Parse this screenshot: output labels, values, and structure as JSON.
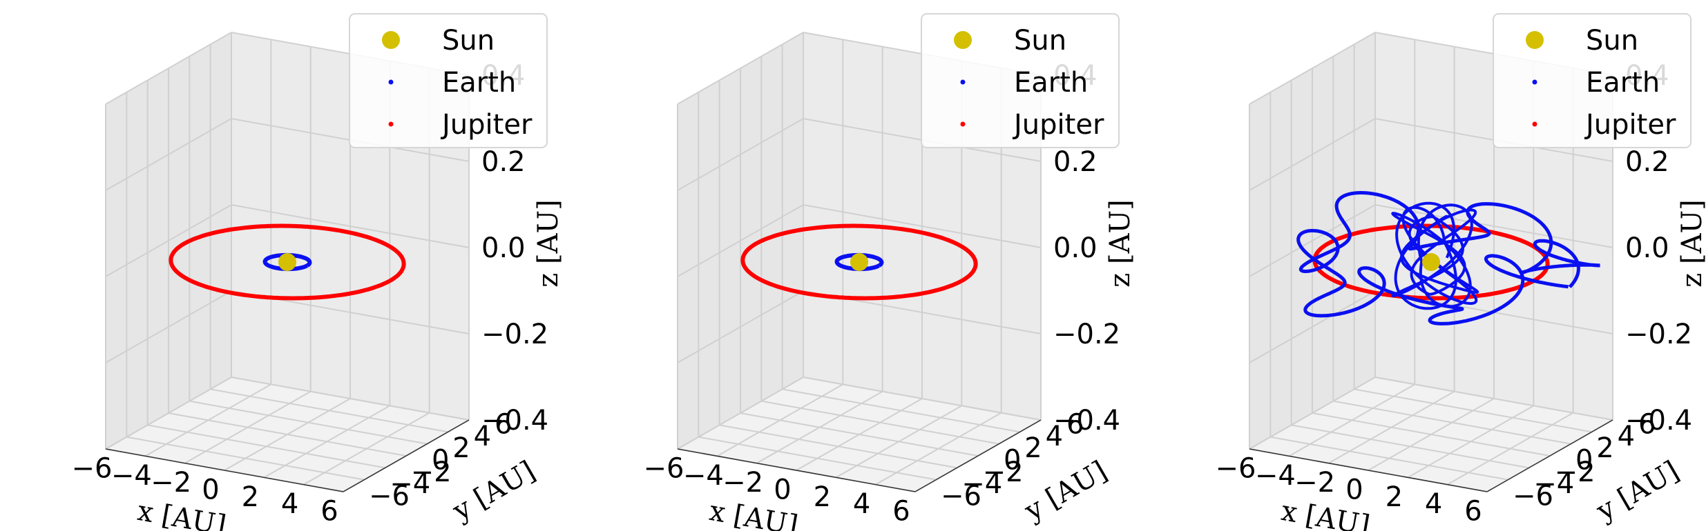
{
  "colors": {
    "sun": "#d4c000",
    "earth": "#0a10f0",
    "jupiter": "#ff0000",
    "pane": "#f2f2f2",
    "grid": "#d0d0d0"
  },
  "legend": {
    "labels": [
      "Sun",
      "Earth",
      "Jupiter"
    ],
    "placement": "top-right"
  },
  "axis_labels": {
    "x": "x [AU]",
    "y": "y [AU]",
    "z": "z [AU]"
  },
  "chart_data": [
    {
      "type": "line",
      "view": "3d",
      "xlim": [
        -6,
        6
      ],
      "ylim": [
        -6,
        6
      ],
      "zlim": [
        -0.4,
        0.4
      ],
      "x_ticks": [
        "−6",
        "−4",
        "−2",
        "0",
        "2",
        "4",
        "6"
      ],
      "y_ticks": [
        "−6",
        "−4",
        "−2",
        "0",
        "2",
        "4",
        "6"
      ],
      "z_ticks": [
        "−0.4",
        "−0.2",
        "0.0",
        "0.2",
        "0.4"
      ],
      "series": [
        {
          "name": "Sun",
          "marker": "dot",
          "x": [
            0
          ],
          "y": [
            0
          ],
          "z": [
            0
          ]
        },
        {
          "name": "Earth",
          "orbit": "circle",
          "radius_au": 1.0,
          "center": [
            0,
            0,
            0
          ]
        },
        {
          "name": "Jupiter",
          "orbit": "circle",
          "radius_au": 5.2,
          "center": [
            0,
            0,
            0
          ]
        }
      ],
      "grid": true
    },
    {
      "type": "line",
      "view": "3d",
      "xlim": [
        -6,
        6
      ],
      "ylim": [
        -6,
        6
      ],
      "zlim": [
        -0.4,
        0.4
      ],
      "x_ticks": [
        "−6",
        "−4",
        "−2",
        "0",
        "2",
        "4",
        "6"
      ],
      "y_ticks": [
        "−6",
        "−4",
        "−2",
        "0",
        "2",
        "4",
        "6"
      ],
      "z_ticks": [
        "−0.4",
        "−0.2",
        "0.0",
        "0.2",
        "0.4"
      ],
      "series": [
        {
          "name": "Sun",
          "marker": "dot",
          "x": [
            0
          ],
          "y": [
            0
          ],
          "z": [
            0
          ]
        },
        {
          "name": "Earth",
          "orbit": "circle",
          "radius_au": 1.0,
          "center": [
            0,
            0,
            0
          ]
        },
        {
          "name": "Jupiter",
          "orbit": "circle",
          "radius_au": 5.2,
          "center": [
            0,
            0,
            0
          ]
        }
      ],
      "grid": true
    },
    {
      "type": "line",
      "view": "3d",
      "xlim": [
        -6,
        6
      ],
      "ylim": [
        -6,
        6
      ],
      "zlim": [
        -0.4,
        0.4
      ],
      "x_ticks": [
        "−6",
        "−4",
        "−2",
        "0",
        "2",
        "4",
        "6"
      ],
      "y_ticks": [
        "−6",
        "−4",
        "−2",
        "0",
        "2",
        "4",
        "6"
      ],
      "z_ticks": [
        "−0.4",
        "−0.2",
        "0.0",
        "0.2",
        "0.4"
      ],
      "series": [
        {
          "name": "Sun",
          "marker": "dot",
          "x": [
            0
          ],
          "y": [
            0
          ],
          "z": [
            0
          ]
        },
        {
          "name": "Earth",
          "orbit": "chaotic",
          "radius_range_au": [
            0.5,
            6.3
          ]
        },
        {
          "name": "Jupiter",
          "orbit": "circle",
          "radius_au": 5.2,
          "center": [
            0,
            0,
            0
          ]
        }
      ],
      "grid": true
    }
  ]
}
